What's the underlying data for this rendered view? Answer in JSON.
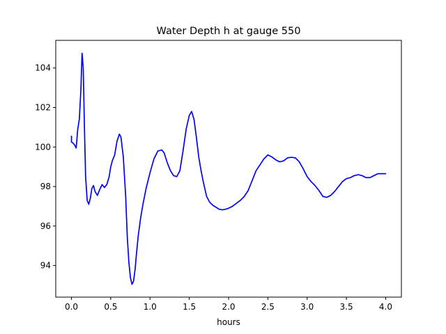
{
  "chart_data": {
    "type": "line",
    "title": "Water Depth h at gauge 550",
    "xlabel": "hours",
    "ylabel": "",
    "xlim": [
      -0.2,
      4.2
    ],
    "ylim": [
      92.4,
      105.4
    ],
    "xticks": [
      0.0,
      0.5,
      1.0,
      1.5,
      2.0,
      2.5,
      3.0,
      3.5,
      4.0
    ],
    "xtick_labels": [
      "0.0",
      "0.5",
      "1.0",
      "1.5",
      "2.0",
      "2.5",
      "3.0",
      "3.5",
      "4.0"
    ],
    "yticks": [
      94,
      96,
      98,
      100,
      102,
      104
    ],
    "ytick_labels": [
      "94",
      "96",
      "98",
      "100",
      "102",
      "104"
    ],
    "grid": false,
    "colors": {
      "series": "#0000ff"
    },
    "series": [
      {
        "color": "#0000ff",
        "x": [
          0.0,
          0.0,
          0.02,
          0.04,
          0.06,
          0.08,
          0.1,
          0.12,
          0.135,
          0.15,
          0.165,
          0.18,
          0.2,
          0.22,
          0.24,
          0.26,
          0.28,
          0.3,
          0.33,
          0.36,
          0.39,
          0.42,
          0.45,
          0.48,
          0.5,
          0.52,
          0.55,
          0.58,
          0.61,
          0.63,
          0.66,
          0.69,
          0.71,
          0.73,
          0.75,
          0.77,
          0.79,
          0.81,
          0.83,
          0.85,
          0.88,
          0.91,
          0.95,
          1.0,
          1.05,
          1.1,
          1.15,
          1.18,
          1.22,
          1.26,
          1.3,
          1.34,
          1.38,
          1.42,
          1.46,
          1.5,
          1.53,
          1.56,
          1.59,
          1.62,
          1.65,
          1.68,
          1.72,
          1.76,
          1.8,
          1.84,
          1.88,
          1.92,
          1.96,
          2.0,
          2.05,
          2.1,
          2.15,
          2.2,
          2.25,
          2.3,
          2.35,
          2.4,
          2.45,
          2.5,
          2.55,
          2.6,
          2.65,
          2.7,
          2.75,
          2.8,
          2.85,
          2.9,
          2.95,
          3.0,
          3.05,
          3.1,
          3.15,
          3.2,
          3.25,
          3.3,
          3.35,
          3.4,
          3.45,
          3.5,
          3.55,
          3.6,
          3.65,
          3.7,
          3.75,
          3.8,
          3.85,
          3.9,
          3.95,
          4.0
        ],
        "y": [
          100.55,
          100.25,
          100.2,
          100.1,
          99.95,
          100.9,
          101.4,
          102.9,
          104.75,
          104.0,
          101.0,
          98.5,
          97.3,
          97.1,
          97.4,
          97.9,
          98.05,
          97.75,
          97.55,
          97.85,
          98.1,
          97.95,
          98.1,
          98.5,
          99.0,
          99.3,
          99.6,
          100.3,
          100.65,
          100.5,
          99.5,
          97.5,
          95.5,
          94.2,
          93.4,
          93.05,
          93.2,
          93.8,
          94.7,
          95.5,
          96.4,
          97.1,
          97.9,
          98.7,
          99.4,
          99.8,
          99.85,
          99.7,
          99.2,
          98.8,
          98.55,
          98.5,
          98.8,
          99.8,
          100.9,
          101.6,
          101.8,
          101.4,
          100.5,
          99.5,
          98.8,
          98.2,
          97.5,
          97.2,
          97.05,
          96.95,
          96.85,
          96.82,
          96.85,
          96.9,
          97.0,
          97.15,
          97.3,
          97.5,
          97.8,
          98.3,
          98.8,
          99.1,
          99.4,
          99.6,
          99.5,
          99.35,
          99.25,
          99.3,
          99.45,
          99.48,
          99.45,
          99.25,
          98.9,
          98.5,
          98.25,
          98.05,
          97.8,
          97.5,
          97.45,
          97.55,
          97.75,
          98.0,
          98.25,
          98.4,
          98.45,
          98.55,
          98.6,
          98.55,
          98.45,
          98.45,
          98.55,
          98.65,
          98.65,
          98.65
        ]
      }
    ]
  }
}
